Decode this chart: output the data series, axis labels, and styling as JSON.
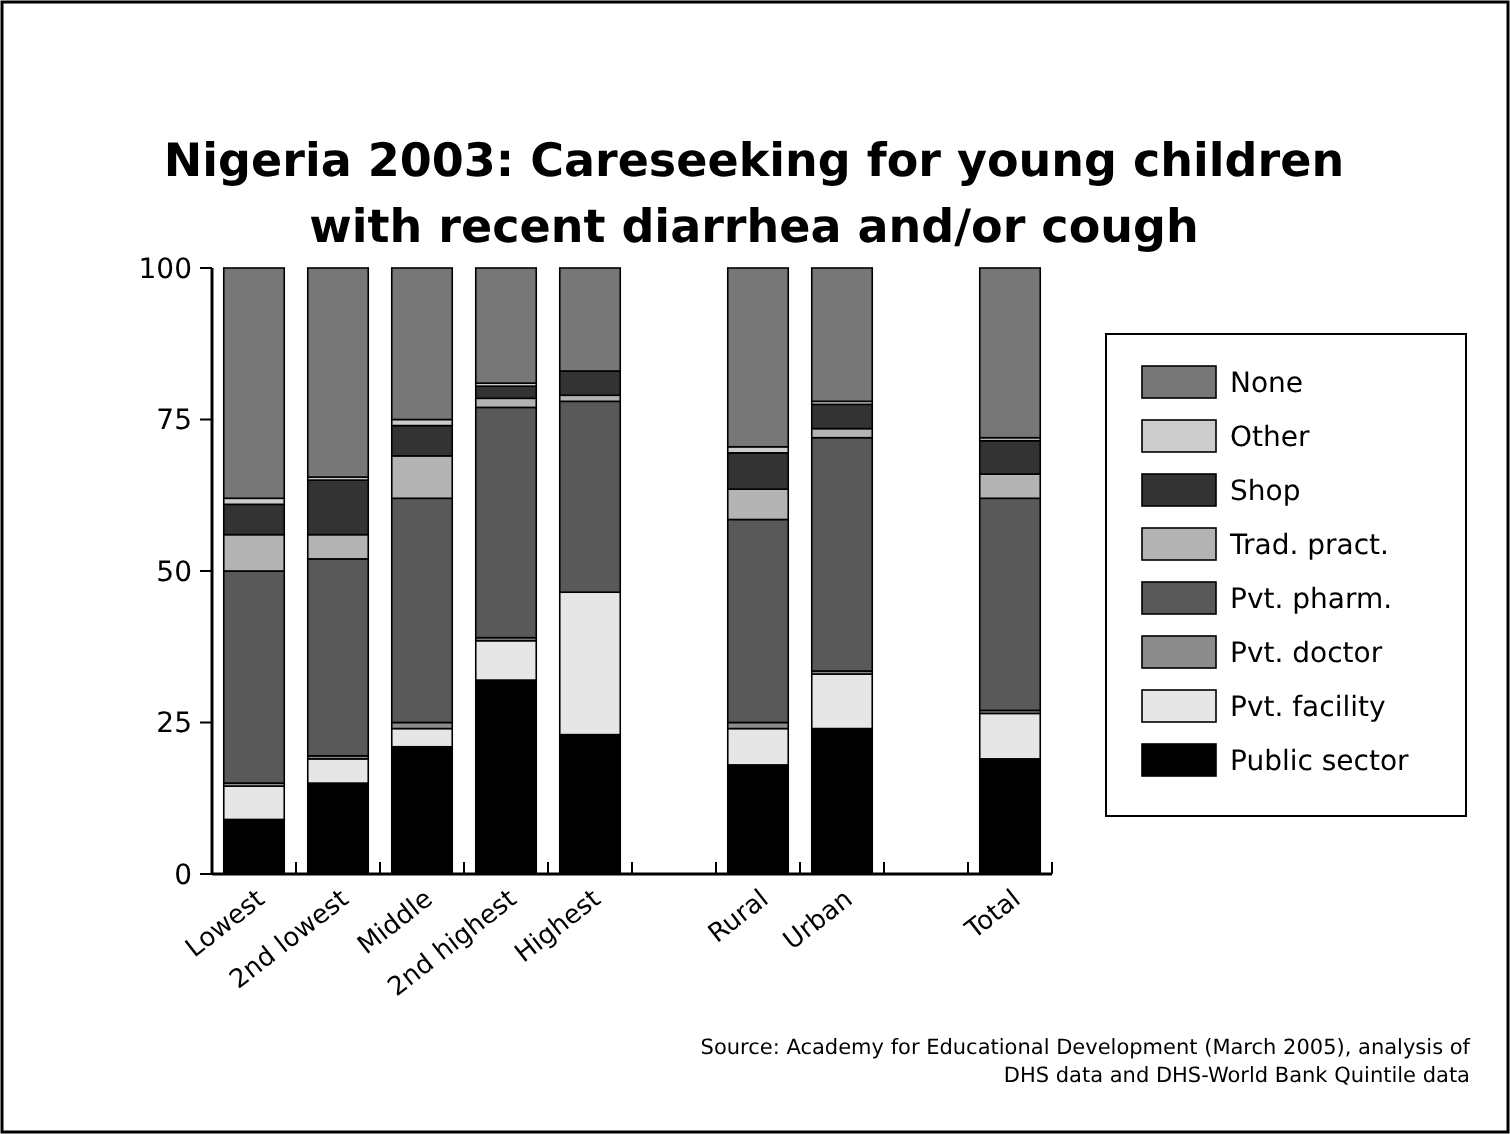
{
  "chart_data": {
    "type": "bar",
    "stacked": true,
    "title": "Nigeria 2003: Careseeking for young children with recent diarrhea and/or cough",
    "categories": [
      "Lowest",
      "2nd lowest",
      "Middle",
      "2nd highest",
      "Highest",
      null,
      "Rural",
      "Urban",
      null,
      "Total"
    ],
    "series": [
      {
        "name": "Public sector",
        "color": "#000000",
        "values": [
          9,
          15,
          21,
          32,
          23,
          null,
          18,
          24,
          null,
          19
        ]
      },
      {
        "name": "Pvt. facility",
        "color": "#e6e6e6",
        "values": [
          5.5,
          4,
          3,
          6.5,
          23.5,
          null,
          6,
          9,
          null,
          7.5
        ]
      },
      {
        "name": "Pvt. doctor",
        "color": "#8c8c8c",
        "values": [
          0.5,
          0.5,
          1,
          0.5,
          null,
          null,
          1,
          0.5,
          null,
          0.5
        ]
      },
      {
        "name": "Pvt. pharm.",
        "color": "#595959",
        "values": [
          35,
          32.5,
          37,
          38,
          31.5,
          null,
          33.5,
          38.5,
          null,
          35
        ]
      },
      {
        "name": "Trad. pract.",
        "color": "#b3b3b3",
        "values": [
          6,
          4,
          7,
          1.5,
          1,
          null,
          5,
          1.5,
          null,
          4
        ]
      },
      {
        "name": "Shop",
        "color": "#333333",
        "values": [
          5,
          9,
          5,
          2,
          4,
          null,
          6,
          4,
          null,
          5.5
        ]
      },
      {
        "name": "Other",
        "color": "#cccccc",
        "values": [
          1,
          0.5,
          1,
          0.5,
          null,
          null,
          1,
          0.5,
          null,
          0.5
        ]
      },
      {
        "name": "None",
        "color": "#777777",
        "values": [
          38,
          34.5,
          25,
          19,
          17,
          null,
          29.5,
          22,
          null,
          28
        ]
      }
    ],
    "ylim": [
      0,
      100
    ],
    "yticks": [
      0,
      25,
      50,
      75,
      100
    ],
    "grid": false,
    "legend": "right",
    "annotations": [
      "Source: Academy for Educational Development (March 2005), analysis of DHS data and DHS-World Bank Quintile data"
    ]
  }
}
